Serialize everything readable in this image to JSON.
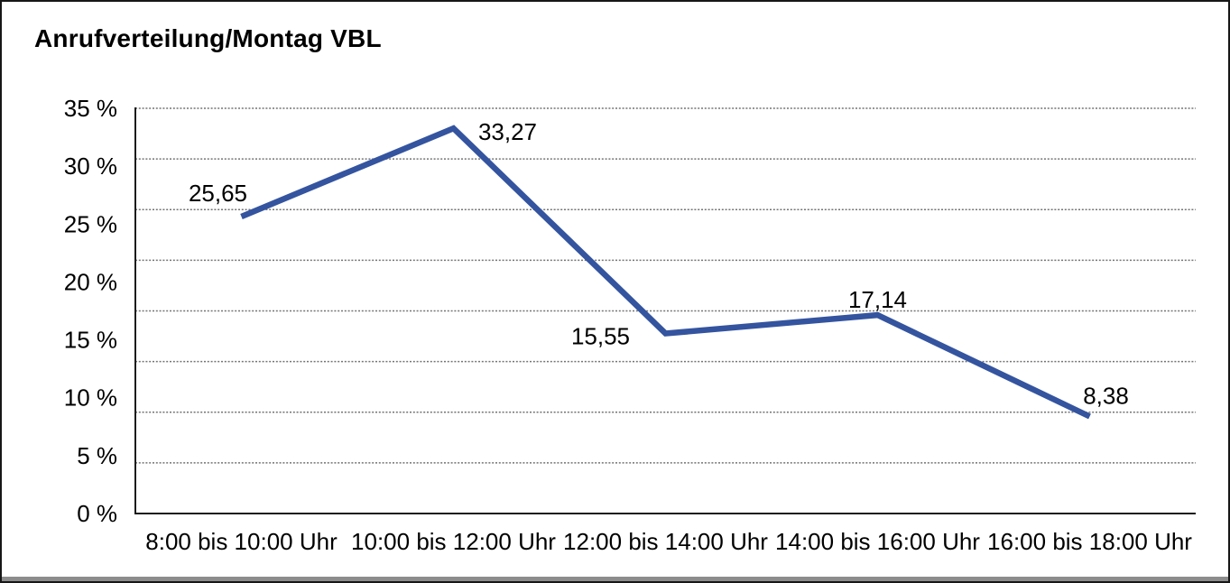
{
  "chart_data": {
    "type": "line",
    "title": "Anrufverteilung/Montag VBL",
    "categories": [
      "8:00 bis 10:00 Uhr",
      "10:00 bis 12:00 Uhr",
      "12:00 bis 14:00 Uhr",
      "14:00 bis 16:00 Uhr",
      "16:00 bis 18:00 Uhr"
    ],
    "values": [
      25.65,
      33.27,
      15.55,
      17.14,
      8.38
    ],
    "value_labels": [
      "25,65",
      "33,27",
      "15,55",
      "17,14",
      "8,38"
    ],
    "xlabel": "",
    "ylabel": "",
    "ylim": [
      0,
      35
    ],
    "y_axis": {
      "unit": "%",
      "tick_values": [
        35,
        30,
        25,
        20,
        15,
        10,
        5,
        0
      ],
      "tick_labels": [
        "35 %",
        "30 %",
        "25 %",
        "20 %",
        "15 %",
        "10 %",
        "5 %",
        "0 %"
      ]
    },
    "grid": {
      "horizontal_style": "dotted",
      "divisions": 8,
      "vertical": false
    },
    "legend": "none",
    "markers": "none",
    "colors": {
      "line": "#34549f",
      "axis": "#1c1c1c",
      "gridline": "#747474",
      "text": "#000000",
      "frame_border": "#171717",
      "window_bottom_edge": "#8c8c8c",
      "background": "#ffffff"
    }
  }
}
